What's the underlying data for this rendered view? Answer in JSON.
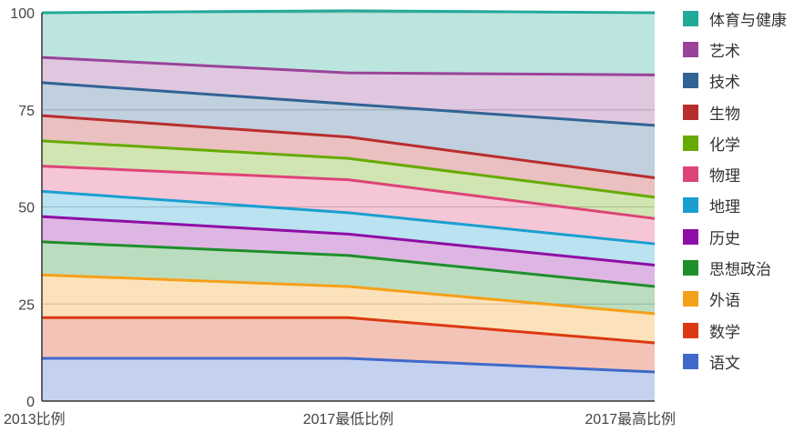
{
  "chart_data": {
    "type": "area",
    "stacked": true,
    "categories": [
      "2013比例",
      "2017最低比例",
      "2017最高比例"
    ],
    "ylim": [
      0,
      100
    ],
    "yticks": [
      0,
      25,
      50,
      75,
      100
    ],
    "grid": true,
    "legend_position": "right",
    "series": [
      {
        "name": "语文",
        "color": "#3f6ac9",
        "values": [
          11.0,
          11.0,
          7.5
        ]
      },
      {
        "name": "数学",
        "color": "#dc3912",
        "values": [
          10.5,
          10.5,
          7.5
        ]
      },
      {
        "name": "外语",
        "color": "#f5a01a",
        "values": [
          11.0,
          8.0,
          7.5
        ]
      },
      {
        "name": "思想政治",
        "color": "#1e8f2a",
        "values": [
          8.5,
          8.0,
          7.0
        ]
      },
      {
        "name": "历史",
        "color": "#8f0ea5",
        "values": [
          6.5,
          5.5,
          5.5
        ]
      },
      {
        "name": "地理",
        "color": "#1a9fd0",
        "values": [
          6.5,
          5.5,
          5.5
        ]
      },
      {
        "name": "物理",
        "color": "#dd4477",
        "values": [
          6.5,
          8.5,
          6.5
        ]
      },
      {
        "name": "化学",
        "color": "#66aa00",
        "values": [
          6.5,
          5.5,
          5.5
        ]
      },
      {
        "name": "生物",
        "color": "#b82e2e",
        "values": [
          6.5,
          5.5,
          5.0
        ]
      },
      {
        "name": "技术",
        "color": "#316395",
        "values": [
          8.5,
          8.5,
          13.5
        ]
      },
      {
        "name": "艺术",
        "color": "#994499",
        "values": [
          6.5,
          8.0,
          13.0
        ]
      },
      {
        "name": "体育与健康",
        "color": "#22aa99",
        "values": [
          11.5,
          16.0,
          16.0
        ]
      }
    ]
  }
}
